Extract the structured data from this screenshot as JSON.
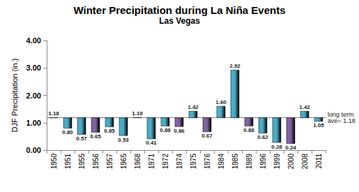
{
  "chart_data": {
    "type": "bar",
    "title": "Winter Precipitation during La Niña Events",
    "subtitle": "Las Vegas",
    "y_label": "DJF Precipitation (in.)",
    "categories": [
      "1950",
      "1951",
      "1955",
      "1956",
      "1957",
      "1965",
      "1968",
      "1971",
      "1972",
      "1974",
      "1975",
      "1976",
      "1984",
      "1985",
      "1989",
      "1996",
      "1999",
      "2000",
      "2008",
      "2011"
    ],
    "values": [
      1.18,
      0.8,
      0.57,
      0.65,
      0.85,
      0.53,
      1.19,
      0.41,
      0.88,
      0.86,
      1.42,
      0.67,
      1.6,
      2.92,
      0.88,
      0.62,
      0.28,
      0.24,
      1.42,
      1.05
    ],
    "value_labels": [
      "1.18",
      "0.80",
      "0.57",
      "0.65",
      "0.85",
      "0.53",
      "1.19",
      "0.41",
      "0.88",
      "0.86",
      "1.42",
      "0.67",
      "1.60",
      "2.92",
      "0.88",
      "0.62",
      "0.28",
      "0.24",
      "1.42",
      "1.05"
    ],
    "colors": [
      "#4bacc6",
      "#4bacc6",
      "#4bacc6",
      "#8064a2",
      "#4bacc6",
      "#4bacc6",
      "#4bacc6",
      "#4bacc6",
      "#4bacc6",
      "#8064a2",
      "#4bacc6",
      "#8064a2",
      "#4bacc6",
      "#4bacc6",
      "#8064a2",
      "#4bacc6",
      "#4bacc6",
      "#8064a2",
      "#4bacc6",
      "#4bacc6"
    ],
    "ylim": [
      0,
      4
    ],
    "yticks": [
      {
        "value": 0,
        "label": "0.00"
      },
      {
        "value": 1,
        "label": "1.00"
      },
      {
        "value": 2,
        "label": "2.00"
      },
      {
        "value": 3,
        "label": "3.00"
      },
      {
        "value": 4,
        "label": "4.00"
      }
    ],
    "grid": false,
    "data_labels": true,
    "annotation": {
      "text": "long term ave=",
      "value": 1.18
    }
  }
}
